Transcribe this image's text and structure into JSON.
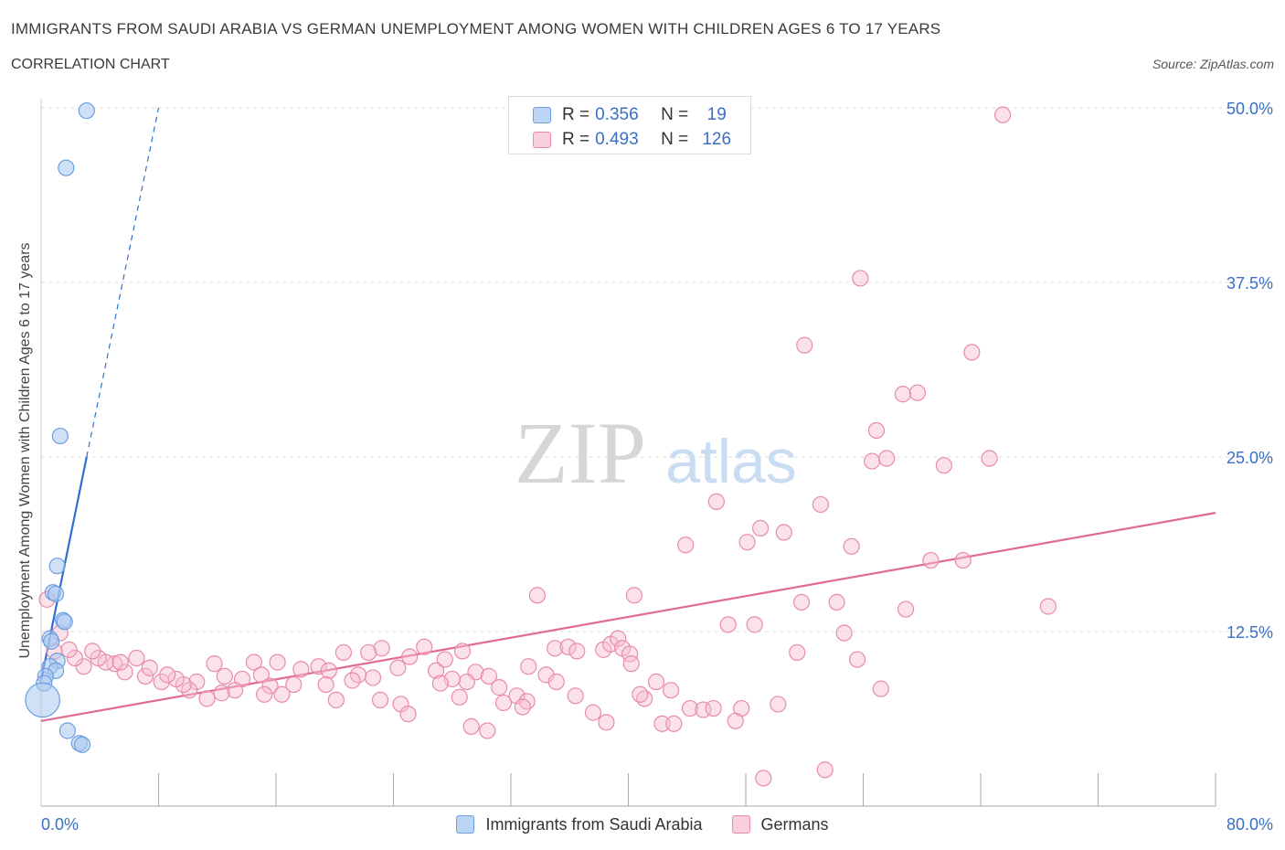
{
  "header": {
    "title": "IMMIGRANTS FROM SAUDI ARABIA VS GERMAN UNEMPLOYMENT AMONG WOMEN WITH CHILDREN AGES 6 TO 17 YEARS",
    "subtitle": "CORRELATION CHART",
    "source": "Source: ZipAtlas.com"
  },
  "legend_top": {
    "rows": [
      {
        "r_label": "R = ",
        "r_value": "0.356",
        "n_label": "N = ",
        "n_value": "19"
      },
      {
        "r_label": "R = ",
        "r_value": "0.493",
        "n_label": "N = ",
        "n_value": "126"
      }
    ]
  },
  "legend_bottom": {
    "items": [
      {
        "label": "Immigrants from Saudi Arabia"
      },
      {
        "label": "Germans"
      }
    ]
  },
  "watermark": {
    "zip": "ZIP",
    "atlas": "atlas"
  },
  "colors": {
    "blue_fill": "#a9c8f0",
    "blue_stroke": "#6d9ee0",
    "blue_line": "#2e6fd0",
    "pink_fill": "#f6bfd0",
    "pink_stroke": "#e98aa9",
    "pink_line": "#e06a95",
    "tick_label": "#3a6fc4",
    "grid": "#dddddd"
  },
  "chart_data": {
    "type": "scatter",
    "title": "IMMIGRANTS FROM SAUDI ARABIA VS GERMAN UNEMPLOYMENT AMONG WOMEN WITH CHILDREN AGES 6 TO 17 YEARS",
    "xlabel": "",
    "ylabel": "Unemployment Among Women with Children Ages 6 to 17 years",
    "xlim": [
      0,
      80
    ],
    "ylim": [
      0,
      50
    ],
    "x_tick_labels": [
      "0.0%",
      "80.0%"
    ],
    "y_ticks": [
      12.5,
      25.0,
      37.5,
      50.0
    ],
    "y_tick_labels": [
      "12.5%",
      "25.0%",
      "37.5%",
      "50.0%"
    ],
    "grid": "horizontal dashed",
    "legend_position": "top-center and bottom",
    "series": [
      {
        "name": "Immigrants from Saudi Arabia",
        "color": "#a9c8f0",
        "R": 0.356,
        "N": 19,
        "trend": {
          "x0": 0.0,
          "y0": 9.0,
          "x1": 3.1,
          "y1": 25.0,
          "dashed_to_x": 8.0,
          "dashed_to_y": 50.0
        },
        "points": [
          {
            "x": 3.1,
            "y": 49.8,
            "s": 1
          },
          {
            "x": 1.7,
            "y": 45.7,
            "s": 1
          },
          {
            "x": 1.3,
            "y": 26.5,
            "s": 1
          },
          {
            "x": 1.1,
            "y": 17.2,
            "s": 1
          },
          {
            "x": 0.8,
            "y": 15.3,
            "s": 1
          },
          {
            "x": 1.0,
            "y": 15.2,
            "s": 1
          },
          {
            "x": 1.5,
            "y": 13.3,
            "s": 1
          },
          {
            "x": 1.6,
            "y": 13.2,
            "s": 1
          },
          {
            "x": 0.6,
            "y": 12.0,
            "s": 1
          },
          {
            "x": 0.7,
            "y": 11.8,
            "s": 1
          },
          {
            "x": 1.1,
            "y": 10.4,
            "s": 1
          },
          {
            "x": 0.6,
            "y": 10.0,
            "s": 1
          },
          {
            "x": 1.0,
            "y": 9.7,
            "s": 1
          },
          {
            "x": 0.3,
            "y": 9.3,
            "s": 1
          },
          {
            "x": 0.2,
            "y": 8.8,
            "s": 1
          },
          {
            "x": 0.1,
            "y": 7.6,
            "s": 2.2
          },
          {
            "x": 1.8,
            "y": 5.4,
            "s": 1
          },
          {
            "x": 2.6,
            "y": 4.5,
            "s": 1
          },
          {
            "x": 2.8,
            "y": 4.4,
            "s": 1
          }
        ]
      },
      {
        "name": "Germans",
        "color": "#f6bfd0",
        "R": 0.493,
        "N": 126,
        "trend": {
          "x0": 0.0,
          "y0": 6.1,
          "x1": 80.0,
          "y1": 21.0
        },
        "points": [
          {
            "x": 65.5,
            "y": 49.5
          },
          {
            "x": 55.8,
            "y": 37.8
          },
          {
            "x": 52.0,
            "y": 33.0
          },
          {
            "x": 63.4,
            "y": 32.5
          },
          {
            "x": 58.7,
            "y": 29.5
          },
          {
            "x": 59.7,
            "y": 29.6
          },
          {
            "x": 56.9,
            "y": 26.9
          },
          {
            "x": 56.6,
            "y": 24.7
          },
          {
            "x": 57.6,
            "y": 24.9
          },
          {
            "x": 61.5,
            "y": 24.4
          },
          {
            "x": 64.6,
            "y": 24.9
          },
          {
            "x": 46.0,
            "y": 21.8
          },
          {
            "x": 53.1,
            "y": 21.6
          },
          {
            "x": 49.0,
            "y": 19.9
          },
          {
            "x": 50.6,
            "y": 19.6
          },
          {
            "x": 48.1,
            "y": 18.9
          },
          {
            "x": 43.9,
            "y": 18.7
          },
          {
            "x": 55.2,
            "y": 18.6
          },
          {
            "x": 60.6,
            "y": 17.6
          },
          {
            "x": 62.8,
            "y": 17.6
          },
          {
            "x": 33.8,
            "y": 15.1
          },
          {
            "x": 40.4,
            "y": 15.1
          },
          {
            "x": 51.8,
            "y": 14.6
          },
          {
            "x": 54.2,
            "y": 14.6
          },
          {
            "x": 58.9,
            "y": 14.1
          },
          {
            "x": 68.6,
            "y": 14.3
          },
          {
            "x": 46.8,
            "y": 13.0
          },
          {
            "x": 48.6,
            "y": 13.0
          },
          {
            "x": 54.7,
            "y": 12.4
          },
          {
            "x": 35.0,
            "y": 11.3
          },
          {
            "x": 35.9,
            "y": 11.4
          },
          {
            "x": 36.5,
            "y": 11.1
          },
          {
            "x": 38.3,
            "y": 11.2
          },
          {
            "x": 38.8,
            "y": 11.6
          },
          {
            "x": 39.3,
            "y": 12.0
          },
          {
            "x": 39.6,
            "y": 11.3
          },
          {
            "x": 40.1,
            "y": 10.9
          },
          {
            "x": 40.2,
            "y": 10.2
          },
          {
            "x": 51.5,
            "y": 11.0
          },
          {
            "x": 55.6,
            "y": 10.5
          },
          {
            "x": 26.1,
            "y": 11.4
          },
          {
            "x": 23.2,
            "y": 11.3
          },
          {
            "x": 22.3,
            "y": 11.0
          },
          {
            "x": 20.6,
            "y": 11.0
          },
          {
            "x": 25.1,
            "y": 10.7
          },
          {
            "x": 28.7,
            "y": 11.1
          },
          {
            "x": 27.5,
            "y": 10.5
          },
          {
            "x": 16.1,
            "y": 10.3
          },
          {
            "x": 14.5,
            "y": 10.3
          },
          {
            "x": 11.8,
            "y": 10.2
          },
          {
            "x": 17.7,
            "y": 9.8
          },
          {
            "x": 18.9,
            "y": 10.0
          },
          {
            "x": 19.6,
            "y": 9.7
          },
          {
            "x": 24.3,
            "y": 9.9
          },
          {
            "x": 26.9,
            "y": 9.7
          },
          {
            "x": 29.6,
            "y": 9.6
          },
          {
            "x": 33.2,
            "y": 10.0
          },
          {
            "x": 34.4,
            "y": 9.4
          },
          {
            "x": 35.1,
            "y": 8.9
          },
          {
            "x": 29.0,
            "y": 8.9
          },
          {
            "x": 28.0,
            "y": 9.1
          },
          {
            "x": 27.2,
            "y": 8.8
          },
          {
            "x": 22.6,
            "y": 9.2
          },
          {
            "x": 21.6,
            "y": 9.4
          },
          {
            "x": 21.2,
            "y": 9.0
          },
          {
            "x": 17.2,
            "y": 8.7
          },
          {
            "x": 19.4,
            "y": 8.7
          },
          {
            "x": 20.1,
            "y": 7.6
          },
          {
            "x": 15.0,
            "y": 9.4
          },
          {
            "x": 13.7,
            "y": 9.1
          },
          {
            "x": 12.5,
            "y": 9.3
          },
          {
            "x": 10.6,
            "y": 8.9
          },
          {
            "x": 15.6,
            "y": 8.6
          },
          {
            "x": 15.2,
            "y": 8.0
          },
          {
            "x": 16.4,
            "y": 8.0
          },
          {
            "x": 13.2,
            "y": 8.3
          },
          {
            "x": 12.3,
            "y": 8.1
          },
          {
            "x": 11.3,
            "y": 7.7
          },
          {
            "x": 10.1,
            "y": 8.3
          },
          {
            "x": 9.7,
            "y": 8.7
          },
          {
            "x": 9.2,
            "y": 9.1
          },
          {
            "x": 8.2,
            "y": 8.9
          },
          {
            "x": 8.6,
            "y": 9.4
          },
          {
            "x": 7.1,
            "y": 9.3
          },
          {
            "x": 7.4,
            "y": 9.9
          },
          {
            "x": 5.7,
            "y": 9.6
          },
          {
            "x": 5.0,
            "y": 10.2
          },
          {
            "x": 4.4,
            "y": 10.3
          },
          {
            "x": 3.9,
            "y": 10.6
          },
          {
            "x": 3.5,
            "y": 11.1
          },
          {
            "x": 2.9,
            "y": 10.0
          },
          {
            "x": 2.3,
            "y": 10.6
          },
          {
            "x": 1.9,
            "y": 11.2
          },
          {
            "x": 1.3,
            "y": 12.4
          },
          {
            "x": 0.4,
            "y": 14.8
          },
          {
            "x": 0.9,
            "y": 11.1
          },
          {
            "x": 5.4,
            "y": 10.3
          },
          {
            "x": 6.5,
            "y": 10.6
          },
          {
            "x": 30.5,
            "y": 9.3
          },
          {
            "x": 31.2,
            "y": 8.5
          },
          {
            "x": 32.4,
            "y": 7.9
          },
          {
            "x": 33.1,
            "y": 7.5
          },
          {
            "x": 36.4,
            "y": 7.9
          },
          {
            "x": 37.6,
            "y": 6.7
          },
          {
            "x": 38.5,
            "y": 6.0
          },
          {
            "x": 41.1,
            "y": 7.7
          },
          {
            "x": 41.9,
            "y": 8.9
          },
          {
            "x": 42.9,
            "y": 8.3
          },
          {
            "x": 40.8,
            "y": 8.0
          },
          {
            "x": 44.2,
            "y": 7.0
          },
          {
            "x": 45.1,
            "y": 6.9
          },
          {
            "x": 45.8,
            "y": 7.0
          },
          {
            "x": 47.7,
            "y": 7.0
          },
          {
            "x": 50.2,
            "y": 7.3
          },
          {
            "x": 57.2,
            "y": 8.4
          },
          {
            "x": 23.1,
            "y": 7.6
          },
          {
            "x": 24.5,
            "y": 7.3
          },
          {
            "x": 25.0,
            "y": 6.6
          },
          {
            "x": 28.5,
            "y": 7.8
          },
          {
            "x": 31.5,
            "y": 7.4
          },
          {
            "x": 32.8,
            "y": 7.1
          },
          {
            "x": 29.3,
            "y": 5.7
          },
          {
            "x": 30.4,
            "y": 5.4
          },
          {
            "x": 42.3,
            "y": 5.9
          },
          {
            "x": 43.1,
            "y": 5.9
          },
          {
            "x": 47.3,
            "y": 6.1
          },
          {
            "x": 49.2,
            "y": 2.0
          },
          {
            "x": 53.4,
            "y": 2.6
          }
        ]
      }
    ]
  }
}
